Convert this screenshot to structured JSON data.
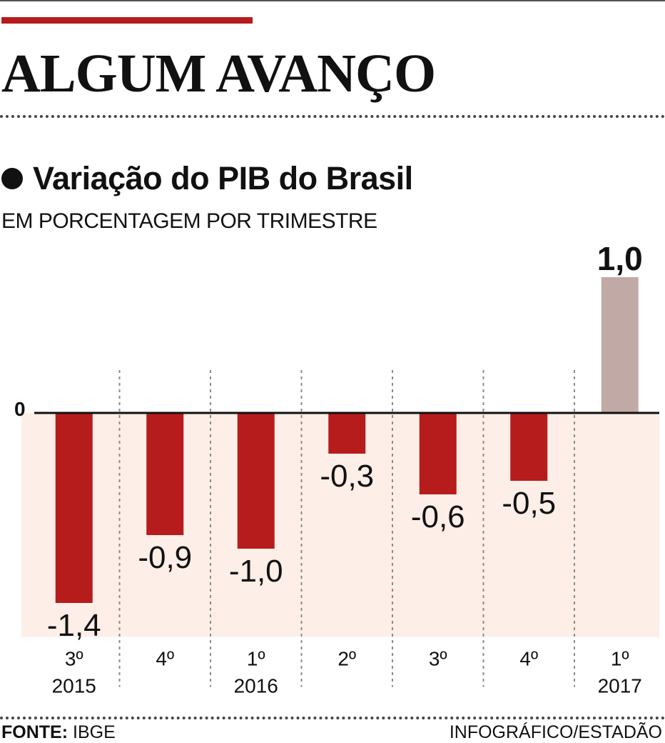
{
  "colors": {
    "accent": "#b71c1c",
    "negative_bar": "#b71c1c",
    "positive_bar": "#c1a9a6",
    "negative_area": "#fdeee8"
  },
  "header": {
    "headline": "ALGUM AVANÇO"
  },
  "chart_data": {
    "type": "bar",
    "title": "Variação do PIB do Brasil",
    "subtitle": "EM PORCENTAGEM POR TRIMESTRE",
    "categories": [
      {
        "quarter": "3º",
        "year": "2015"
      },
      {
        "quarter": "4º",
        "year": ""
      },
      {
        "quarter": "1º",
        "year": "2016"
      },
      {
        "quarter": "2º",
        "year": ""
      },
      {
        "quarter": "3º",
        "year": ""
      },
      {
        "quarter": "4º",
        "year": ""
      },
      {
        "quarter": "1º",
        "year": "2017"
      }
    ],
    "values": [
      -1.4,
      -0.9,
      -1.0,
      -0.3,
      -0.6,
      -0.5,
      1.0
    ],
    "value_labels": [
      "-1,4",
      "-0,9",
      "-1,0",
      "-0,3",
      "-0,6",
      "-0,5",
      "1,0"
    ],
    "zero_label": "0",
    "ylim": [
      -1.65,
      1.0
    ],
    "xlabel": "",
    "ylabel": ""
  },
  "footer": {
    "source_label": "FONTE:",
    "source_value": "IBGE",
    "credit": "INFOGRÁFICO/ESTADÃO"
  }
}
